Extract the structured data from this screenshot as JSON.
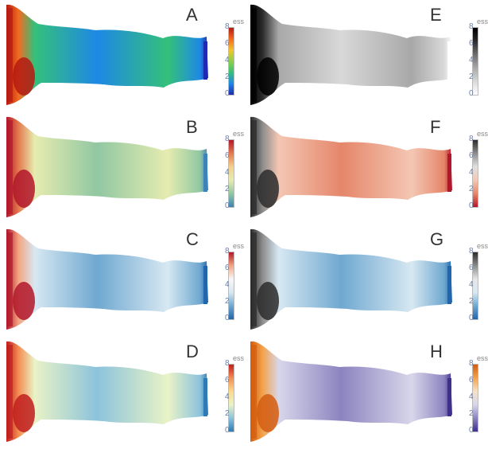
{
  "panels": [
    {
      "letter": "A",
      "scale": "turbo"
    },
    {
      "letter": "E",
      "scale": "gray"
    },
    {
      "letter": "B",
      "scale": "spectral"
    },
    {
      "letter": "F",
      "scale": "redgray"
    },
    {
      "letter": "C",
      "scale": "rdbu"
    },
    {
      "letter": "G",
      "scale": "bluegray"
    },
    {
      "letter": "D",
      "scale": "rdylbu"
    },
    {
      "letter": "H",
      "scale": "purpleorange"
    }
  ],
  "colorbar": {
    "title": "ess",
    "ticks": [
      "8",
      "6",
      "4",
      "2",
      "0"
    ]
  },
  "colors": {
    "turbo": [
      "#1e2ab0",
      "#1e88e5",
      "#34c17a",
      "#8bd145",
      "#f4c430",
      "#f26b21",
      "#b51a12"
    ],
    "gray": [
      "#ffffff",
      "#d9d9d9",
      "#a8a8a8",
      "#6e6e6e",
      "#2b2b2b",
      "#000000"
    ],
    "spectral": [
      "#3b83b8",
      "#91c7a2",
      "#e6ecb0",
      "#f4d08c",
      "#e57a4e",
      "#b2182b"
    ],
    "redgray": [
      "#b2182b",
      "#e5866a",
      "#f4c7b3",
      "#e0e0e0",
      "#8c8c8c",
      "#2b2b2b"
    ],
    "rdbu": [
      "#2166ac",
      "#6fa8d0",
      "#d7e8f2",
      "#f7f7f7",
      "#f4a582",
      "#b2182b"
    ],
    "bluegray": [
      "#2166ac",
      "#6fa8d0",
      "#d7e8f2",
      "#e6e6e6",
      "#8c8c8c",
      "#2b2b2b"
    ],
    "rdylbu": [
      "#2c7bb6",
      "#8cc3dc",
      "#e9f3c6",
      "#fdd98b",
      "#f48d52",
      "#c01e1e"
    ],
    "purpleorange": [
      "#3f2f8c",
      "#8c84c0",
      "#d8d6ea",
      "#f7e2c7",
      "#f3a24b",
      "#d35d10"
    ]
  }
}
